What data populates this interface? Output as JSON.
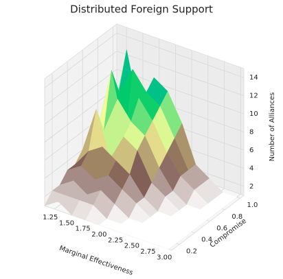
{
  "chart_data": {
    "type": "surface",
    "title": "Distributed Foreign Support",
    "xlabel": "Marginal Effectiveness",
    "ylabel": "Compromise",
    "zlabel": "Number of Alliances",
    "x": [
      1.1,
      1.31,
      1.52,
      1.73,
      1.94,
      2.16,
      2.37,
      2.58,
      2.79,
      3.0
    ],
    "y": [
      0.1,
      0.2,
      0.3,
      0.4,
      0.5,
      0.6,
      0.7,
      0.8,
      0.9,
      1.0
    ],
    "z": [
      [
        1,
        2,
        1,
        1,
        1,
        1,
        1,
        1,
        1,
        1
      ],
      [
        2,
        2,
        2,
        2,
        1,
        1,
        1,
        1,
        1,
        1
      ],
      [
        2,
        3,
        2,
        3,
        2,
        1,
        1,
        1,
        1,
        1
      ],
      [
        3,
        4,
        3,
        4,
        3,
        2,
        1,
        1,
        1,
        1
      ],
      [
        3,
        5,
        6,
        5,
        4,
        2,
        1,
        1,
        1,
        1
      ],
      [
        4,
        9,
        4,
        7,
        6,
        3,
        2,
        1,
        1,
        1
      ],
      [
        4,
        6,
        10,
        8,
        7,
        4,
        2,
        1,
        1,
        1
      ],
      [
        5,
        12,
        5,
        10,
        8,
        5,
        3,
        2,
        1,
        1
      ],
      [
        6,
        9,
        12,
        10,
        9,
        6,
        3,
        2,
        1,
        1
      ],
      [
        5,
        13,
        6,
        11,
        10,
        7,
        3,
        2,
        1,
        1
      ]
    ],
    "colormap": [
      "#ffffff",
      "#805c54",
      "#ffff99",
      "#00cc66",
      "#0099ff",
      "#333399"
    ],
    "xlim": [
      1.1,
      3.05
    ],
    "ylim": [
      0.1,
      1.05
    ],
    "zlim": [
      1,
      15
    ],
    "xticks": [
      1.25,
      {
        "value": 1.5,
        "label": "1.50"
      },
      1.75,
      {
        "value": 2,
        "label": "2.00"
      },
      2.25,
      {
        "value": 2.5,
        "label": "2.50"
      },
      2.75,
      {
        "value": 3,
        "label": "3.00"
      }
    ],
    "yticks": [
      0.2,
      0.4,
      0.6,
      0.8,
      {
        "value": 1,
        "label": "1.0"
      }
    ],
    "zticks": [
      2,
      4,
      6,
      8,
      10,
      12,
      14
    ],
    "grid": true
  }
}
